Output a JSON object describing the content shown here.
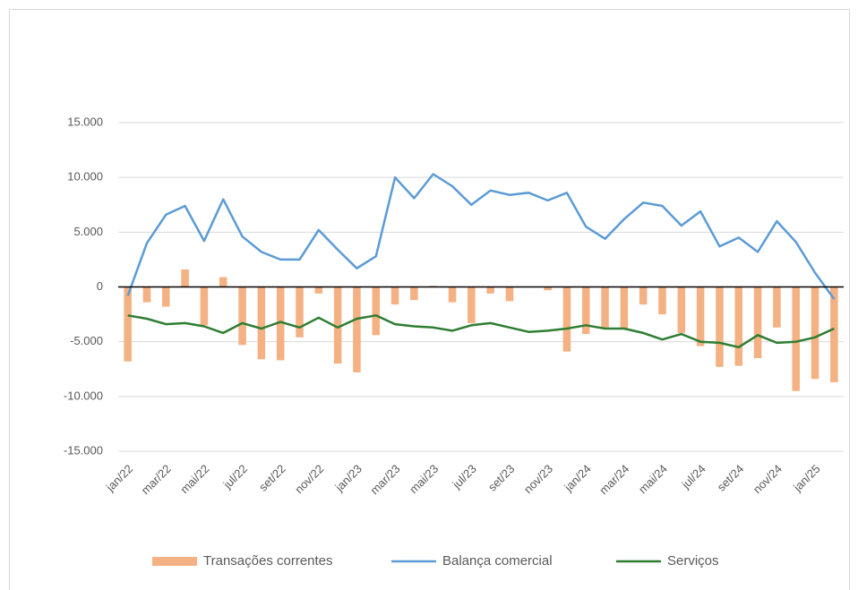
{
  "chart_data": {
    "type": "bar",
    "categories": [
      "jan/22",
      null,
      "mar/22",
      null,
      "mai/22",
      null,
      "jul/22",
      null,
      "set/22",
      null,
      "nov/22",
      null,
      "jan/23",
      null,
      "mar/23",
      null,
      "mai/23",
      null,
      "jul/23",
      null,
      "set/23",
      null,
      "nov/23",
      null,
      "jan/24",
      null,
      "mar/24",
      null,
      "mai/24",
      null,
      "jul/24",
      null,
      "set/24",
      null,
      "nov/24",
      null,
      "jan/25",
      null
    ],
    "series": [
      {
        "name": "Transações correntes",
        "type": "bar",
        "color": "#f4b183",
        "values": [
          -6800,
          -1400,
          -1800,
          1600,
          -3500,
          900,
          -5300,
          -6600,
          -6700,
          -4600,
          -600,
          -7000,
          -7800,
          -4400,
          -1600,
          -1200,
          100,
          -1400,
          -3300,
          -600,
          -1300,
          0,
          -300,
          -5900,
          -4300,
          -3700,
          -3800,
          -1600,
          -2500,
          -4200,
          -5400,
          -7300,
          -7200,
          -6500,
          -3700,
          -9500,
          -8400,
          -8700
        ]
      },
      {
        "name": "Balança comercial",
        "type": "line",
        "color": "#5b9bd5",
        "values": [
          -800,
          4000,
          6600,
          7400,
          4200,
          8000,
          4600,
          3200,
          2500,
          2500,
          5200,
          3400,
          1700,
          2800,
          10000,
          8100,
          10300,
          9200,
          7500,
          8800,
          8400,
          8600,
          7900,
          8600,
          5500,
          4400,
          6200,
          7700,
          7400,
          5600,
          6900,
          3700,
          4500,
          3200,
          6000,
          4100,
          1300,
          -1100
        ]
      },
      {
        "name": "Serviços",
        "type": "line",
        "color": "#2e7d32",
        "values": [
          -2600,
          -2900,
          -3400,
          -3300,
          -3600,
          -4200,
          -3300,
          -3800,
          -3200,
          -3700,
          -2800,
          -3700,
          -2900,
          -2600,
          -3400,
          -3600,
          -3700,
          -4000,
          -3500,
          -3300,
          -3700,
          -4100,
          -4000,
          -3800,
          -3500,
          -3800,
          -3800,
          -4200,
          -4800,
          -4300,
          -5000,
          -5100,
          -5500,
          -4400,
          -5100,
          -5000,
          -4600,
          -3800
        ]
      }
    ],
    "ylim": [
      -15000,
      15000
    ],
    "yticks": [
      {
        "value": -15000,
        "label": "-15.000"
      },
      {
        "value": -10000,
        "label": "-10.000"
      },
      {
        "value": -5000,
        "label": "-5.000"
      },
      0,
      {
        "value": 5000,
        "label": "5.000"
      },
      {
        "value": 10000,
        "label": "10.000"
      },
      {
        "value": 15000,
        "label": "15.000"
      }
    ],
    "grid": true,
    "legend": "bottom"
  }
}
